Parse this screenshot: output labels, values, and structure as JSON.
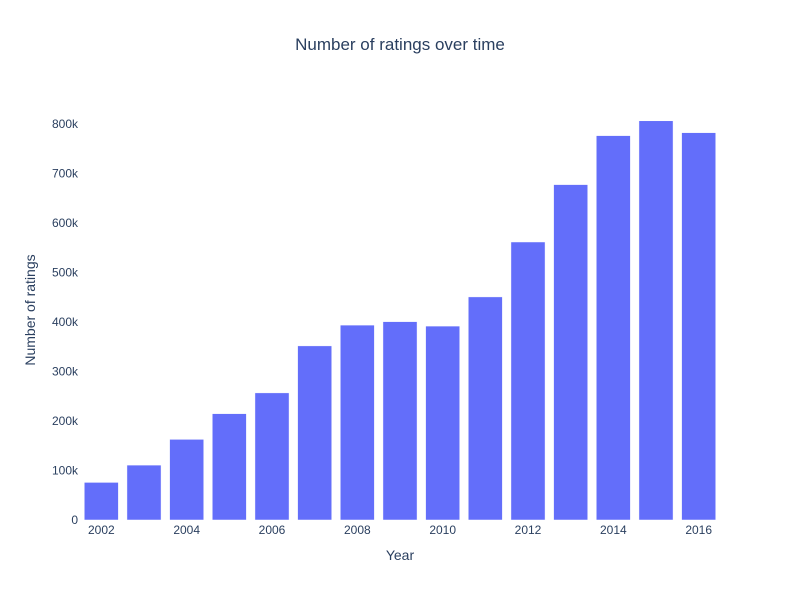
{
  "colors": {
    "bar": "#636efa",
    "text": "#2a3f5f",
    "background": "#ffffff"
  },
  "chart_data": {
    "type": "bar",
    "title": "Number of ratings over time",
    "xlabel": "Year",
    "ylabel": "Number of ratings",
    "x": [
      2002,
      2003,
      2004,
      2005,
      2006,
      2007,
      2008,
      2009,
      2010,
      2011,
      2012,
      2013,
      2014,
      2015,
      2016
    ],
    "values": [
      76000,
      111000,
      163000,
      215000,
      257000,
      352000,
      394000,
      401000,
      392000,
      451000,
      562000,
      678000,
      777000,
      807000,
      783000
    ],
    "x_ticks": [
      "2002",
      "2004",
      "2006",
      "2008",
      "2010",
      "2012",
      "2014",
      "2016"
    ],
    "y_ticks": [
      "0",
      "100k",
      "200k",
      "300k",
      "400k",
      "500k",
      "600k",
      "700k",
      "800k"
    ],
    "ylim": [
      0,
      849000
    ],
    "grid": false,
    "legend": "none"
  }
}
